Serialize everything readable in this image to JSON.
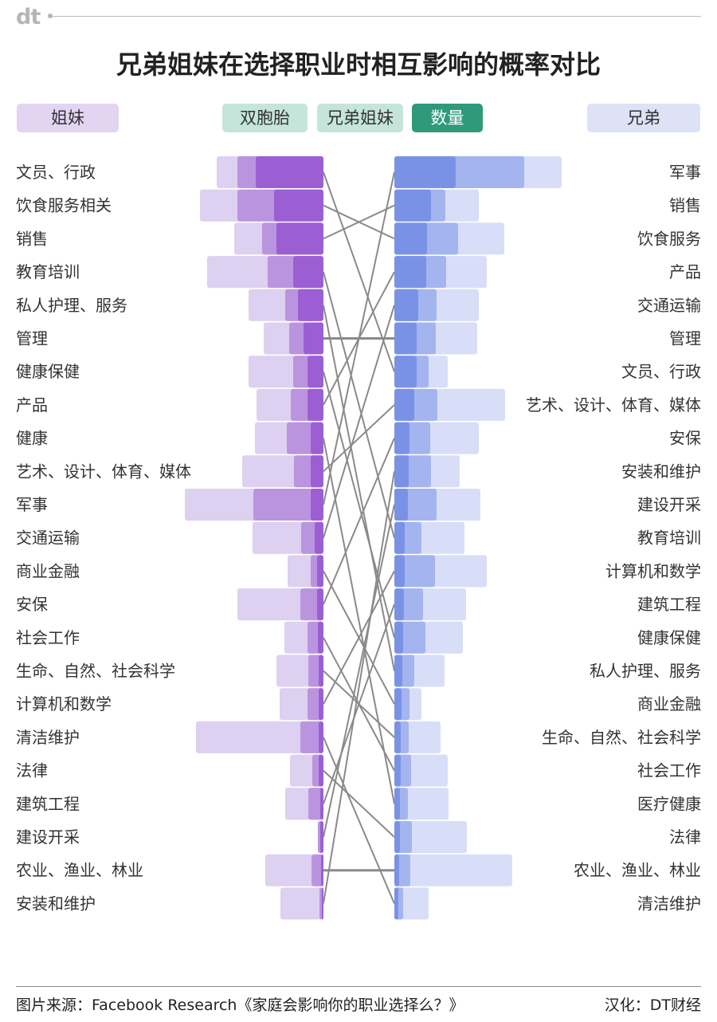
{
  "logo": "dt",
  "title": "兄弟姐妹在选择职业时相互影响的概率对比",
  "legend": {
    "sisters": "姐妹",
    "twins": "双胞胎",
    "siblings": "兄弟姐妹",
    "count": "数量",
    "brothers": "兄弟"
  },
  "colors": {
    "sisters_twins": "#ddd0f0",
    "sisters_siblings": "#bb94e0",
    "sisters_count": "#9b5fd3",
    "brothers_twins": "#d8def7",
    "brothers_siblings": "#a3b4ef",
    "brothers_count": "#7a92e6",
    "connector": "#8a8a8a",
    "legend_sisters": "#e3d4f2",
    "legend_twins": "#c5e5da",
    "legend_count": "#2e9a7a",
    "legend_brothers": "#dde2f7"
  },
  "chart_data": [
    {
      "type": "bar",
      "title": "姐妹",
      "note": "horizontal bars growing leftward; relative lengths, no printed axis",
      "categories": [
        "文员、行政",
        "饮食服务相关",
        "销售",
        "教育培训",
        "私人护理、服务",
        "管理",
        "健康保健",
        "产品",
        "健康",
        "艺术、设计、体育、媒体",
        "军事",
        "交通运输",
        "商业金融",
        "安保",
        "社会工作",
        "生命、自然、社会科学",
        "计算机和数学",
        "清洁维护",
        "法律",
        "建筑工程",
        "建设开采",
        "农业、渔业、林业",
        "安装和维护"
      ],
      "series": [
        {
          "name": "双胞胎",
          "values": [
            134,
            155,
            112,
            146,
            94,
            75,
            94,
            84,
            86,
            102,
            174,
            89,
            45,
            108,
            49,
            59,
            55,
            160,
            42,
            48,
            7,
            73,
            54
          ]
        },
        {
          "name": "兄弟姐妹",
          "values": [
            108,
            108,
            77,
            70,
            48,
            43,
            38,
            41,
            46,
            37,
            88,
            28,
            16,
            29,
            20,
            19,
            20,
            29,
            14,
            19,
            7,
            15,
            5
          ]
        },
        {
          "name": "数量",
          "values": [
            85,
            62,
            59,
            38,
            32,
            25,
            20,
            20,
            16,
            16,
            16,
            11,
            8,
            8,
            7,
            6,
            6,
            6,
            6,
            4,
            4,
            3,
            2
          ]
        }
      ]
    },
    {
      "type": "bar",
      "title": "兄弟",
      "note": "horizontal bars growing rightward; relative lengths, no printed axis",
      "categories": [
        "军事",
        "销售",
        "饮食服务",
        "产品",
        "交通运输",
        "管理",
        "文员、行政",
        "艺术、设计、体育、媒体",
        "安保",
        "安装和维护",
        "建设开采",
        "教育培训",
        "计算机和数学",
        "建筑工程",
        "健康保健",
        "私人护理、服务",
        "商业金融",
        "生命、自然、社会科学",
        "社会工作",
        "医疗健康",
        "法律",
        "农业、渔业、林业",
        "清洁维护"
      ],
      "series": [
        {
          "name": "双胞胎",
          "values": [
            210,
            106,
            138,
            116,
            106,
            104,
            67,
            139,
            106,
            82,
            108,
            88,
            116,
            90,
            86,
            63,
            34,
            58,
            67,
            68,
            91,
            148,
            43
          ]
        },
        {
          "name": "兄弟姐妹",
          "values": [
            163,
            64,
            80,
            65,
            53,
            52,
            43,
            54,
            45,
            46,
            53,
            34,
            51,
            36,
            39,
            25,
            19,
            18,
            21,
            17,
            22,
            20,
            11
          ]
        },
        {
          "name": "数量",
          "values": [
            77,
            46,
            41,
            40,
            30,
            28,
            28,
            25,
            19,
            18,
            17,
            13,
            13,
            12,
            11,
            10,
            9,
            8,
            8,
            7,
            7,
            6,
            5
          ]
        }
      ]
    },
    {
      "type": "table",
      "title": "rank connections (姐妹 rank → 兄弟 rank, same occupation)",
      "links": [
        [
          1,
          7
        ],
        [
          2,
          3
        ],
        [
          3,
          2
        ],
        [
          4,
          12
        ],
        [
          5,
          16
        ],
        [
          6,
          6
        ],
        [
          7,
          15
        ],
        [
          8,
          4
        ],
        [
          9,
          20
        ],
        [
          10,
          8
        ],
        [
          11,
          1
        ],
        [
          12,
          5
        ],
        [
          13,
          17
        ],
        [
          14,
          9
        ],
        [
          15,
          19
        ],
        [
          16,
          18
        ],
        [
          17,
          13
        ],
        [
          18,
          23
        ],
        [
          19,
          21
        ],
        [
          20,
          14
        ],
        [
          21,
          11
        ],
        [
          22,
          22
        ],
        [
          23,
          10
        ]
      ]
    }
  ],
  "footer": {
    "source": "图片来源：Facebook Research《家庭会影响你的职业选择么？》",
    "credit": "汉化：DT财经"
  }
}
